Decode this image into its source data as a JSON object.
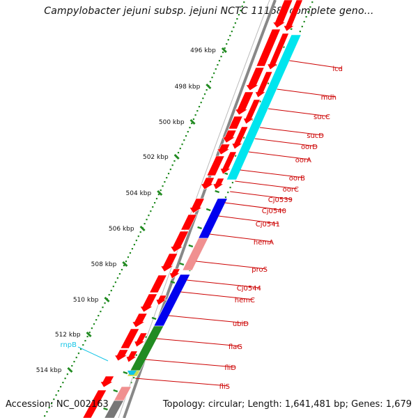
{
  "title": "Campylobacter jejuni subsp. jejuni NCTC 11168, complete geno...",
  "footer": {
    "accession": "Accession: NC_002163",
    "topology": "Topology: circular; Length: 1,641,481 bp; Genes: 1,679"
  },
  "colors": {
    "cds": "#ff0000",
    "trna": "#ffffff",
    "cyan_cog": "#00e5ee",
    "blue_cog": "#0000ee",
    "pink_cog": "#f09090",
    "green_cog": "#228b22",
    "yellow_cog": "#c8dc50",
    "gray_cog": "#777777",
    "backbone": "#888888",
    "gc_ticks": "#228b22",
    "rna_label": "#12c4e6",
    "gene_label": "#cc0000"
  },
  "kbp_ticks": [
    "496 kbp",
    "498 kbp",
    "500 kbp",
    "502 kbp",
    "504 kbp",
    "506 kbp",
    "508 kbp",
    "510 kbp",
    "512 kbp",
    "514 kbp"
  ],
  "gene_labels": [
    "icd",
    "mdh",
    "sucC",
    "sucD",
    "oorD",
    "oorA",
    "oorB",
    "oorC",
    "Cj0539",
    "Cj0540",
    "Cj0541",
    "hemA",
    "proS",
    "Cj0544",
    "hemC",
    "ubiD",
    "flaG",
    "fliD",
    "fliS"
  ],
  "rna_labels": [
    "rnpB"
  ]
}
